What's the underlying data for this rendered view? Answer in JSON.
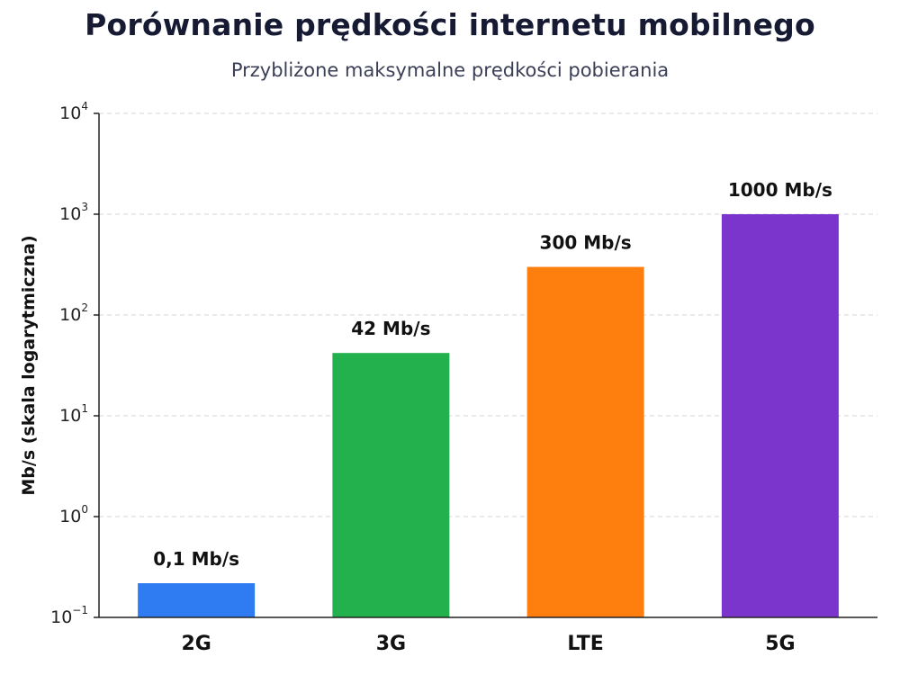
{
  "chart_data": {
    "type": "bar",
    "title": "Porównanie prędkości internetu mobilnego",
    "subtitle": "Przybliżone maksymalne prędkości pobierania",
    "xlabel": "",
    "ylabel": "Mb/s (skala logarytmiczna)",
    "yscale": "log",
    "ylim": [
      0.1,
      10000
    ],
    "yticks": [
      {
        "base": "10",
        "exp": "−1",
        "value": 0.1
      },
      {
        "base": "10",
        "exp": "0",
        "value": 1
      },
      {
        "base": "10",
        "exp": "1",
        "value": 10
      },
      {
        "base": "10",
        "exp": "2",
        "value": 100
      },
      {
        "base": "10",
        "exp": "3",
        "value": 1000
      },
      {
        "base": "10",
        "exp": "4",
        "value": 10000
      }
    ],
    "grid": true,
    "categories": [
      "2G",
      "3G",
      "LTE",
      "5G"
    ],
    "values": [
      0.1,
      42,
      300,
      1000
    ],
    "value_labels": [
      "0,1 Mb/s",
      "42 Mb/s",
      "300 Mb/s",
      "1000 Mb/s"
    ],
    "colors": [
      "#2f7bf2",
      "#22b14c",
      "#ff7f0e",
      "#7b35cc"
    ]
  }
}
